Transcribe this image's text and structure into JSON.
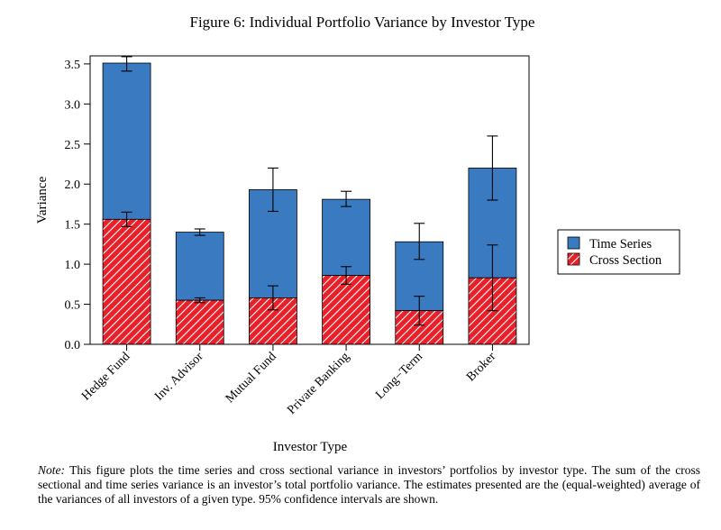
{
  "figure": {
    "title": "Figure 6: Individual Portfolio Variance by Investor Type",
    "note_label": "Note:",
    "note_text": "This figure plots the time series and cross sectional variance in investors’ portfolios by investor type. The sum of the cross sectional and time series variance is an investor’s total portfolio variance. The estimates presented are the (equal-weighted) average of the variances of all investors of a given type. 95% confidence intervals are shown."
  },
  "chart_data": {
    "type": "bar",
    "stacked": true,
    "categories": [
      "Hedge Fund",
      "Inv. Advisor",
      "Mutual Fund",
      "Private Banking",
      "Long−Term",
      "Broker"
    ],
    "xlabel": "Investor Type",
    "ylabel": "Variance",
    "ylim": [
      0,
      3.6
    ],
    "yticks": [
      "0.0",
      "0.5",
      "1.0",
      "1.5",
      "2.0",
      "2.5",
      "3.0",
      "3.5"
    ],
    "grid": false,
    "legend_position": "right",
    "series": [
      {
        "name": "Cross Section",
        "color": "#e8202a",
        "pattern": "diagonal-hatch-white",
        "values": [
          1.56,
          0.55,
          0.58,
          0.86,
          0.42,
          0.83
        ],
        "ci": [
          [
            1.47,
            1.65
          ],
          [
            0.52,
            0.58
          ],
          [
            0.43,
            0.73
          ],
          [
            0.75,
            0.97
          ],
          [
            0.24,
            0.6
          ],
          [
            0.42,
            1.24
          ]
        ]
      },
      {
        "name": "Time Series",
        "color": "#3a7ac1",
        "values": [
          1.95,
          0.85,
          1.35,
          0.95,
          0.86,
          1.37
        ],
        "ci_total": [
          [
            3.41,
            3.59
          ],
          [
            1.36,
            1.44
          ],
          [
            1.66,
            2.2
          ],
          [
            1.72,
            1.91
          ],
          [
            1.06,
            1.51
          ],
          [
            1.8,
            2.6
          ]
        ]
      }
    ]
  }
}
